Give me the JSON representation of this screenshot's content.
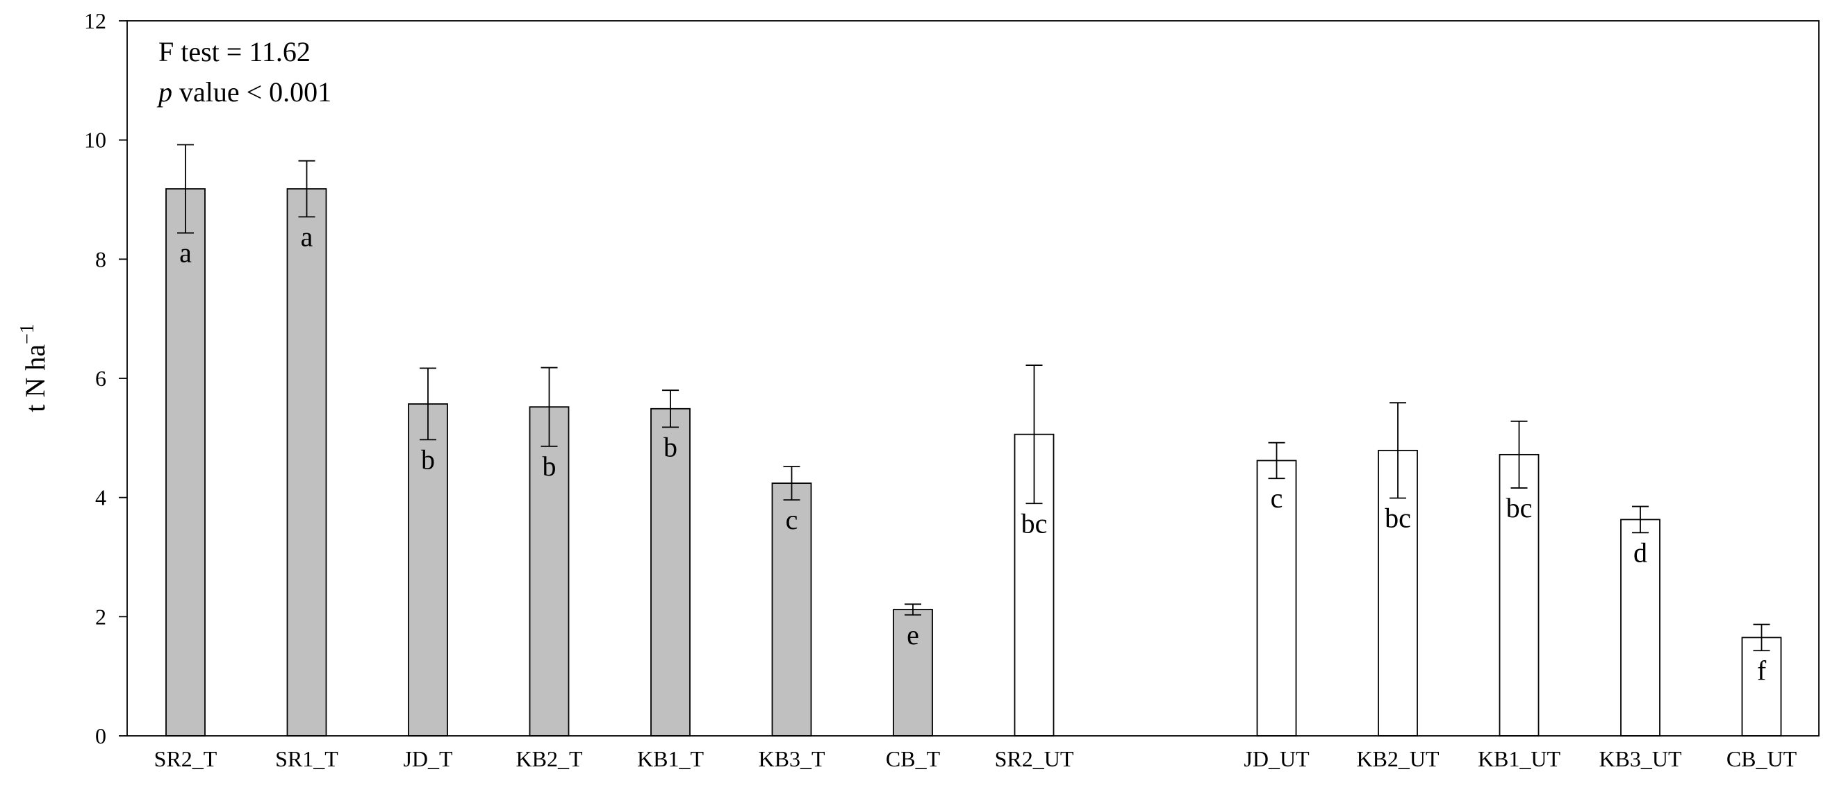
{
  "chart_data": {
    "type": "bar",
    "title": "",
    "xlabel": "",
    "ylabel": "t N ha",
    "ylabel_superscript": "−1",
    "ylim": [
      0,
      12
    ],
    "yticks": [
      0,
      2,
      4,
      6,
      8,
      10,
      12
    ],
    "grid": false,
    "annotation": {
      "f_test": "F test = 11.62",
      "p_symbol": "p",
      "p_rest": " value < 0.001"
    },
    "groups": {
      "treated_color": "#c0c0c0",
      "untreated_color": "#ffffff"
    },
    "bars": [
      {
        "category": "SR2_T",
        "value": 9.18,
        "err": 0.74,
        "letter": "a",
        "treated": true,
        "slot": 0
      },
      {
        "category": "SR1_T",
        "value": 9.18,
        "err": 0.47,
        "letter": "a",
        "treated": true,
        "slot": 1
      },
      {
        "category": "JD_T",
        "value": 5.57,
        "err": 0.6,
        "letter": "b",
        "treated": true,
        "slot": 2
      },
      {
        "category": "KB2_T",
        "value": 5.52,
        "err": 0.66,
        "letter": "b",
        "treated": true,
        "slot": 3
      },
      {
        "category": "KB1_T",
        "value": 5.49,
        "err": 0.31,
        "letter": "b",
        "treated": true,
        "slot": 4
      },
      {
        "category": "KB3_T",
        "value": 4.24,
        "err": 0.28,
        "letter": "c",
        "treated": true,
        "slot": 5
      },
      {
        "category": "CB_T",
        "value": 2.12,
        "err": 0.09,
        "letter": "e",
        "treated": true,
        "slot": 6
      },
      {
        "category": "SR2_UT",
        "value": 5.06,
        "err": 1.16,
        "letter": "bc",
        "treated": false,
        "slot": 7
      },
      {
        "category": "JD_UT",
        "value": 4.62,
        "err": 0.3,
        "letter": "c",
        "treated": false,
        "slot": 9
      },
      {
        "category": "KB2_UT",
        "value": 4.79,
        "err": 0.8,
        "letter": "bc",
        "treated": false,
        "slot": 10
      },
      {
        "category": "KB1_UT",
        "value": 4.72,
        "err": 0.56,
        "letter": "bc",
        "treated": false,
        "slot": 11
      },
      {
        "category": "KB3_UT",
        "value": 3.63,
        "err": 0.22,
        "letter": "d",
        "treated": false,
        "slot": 12
      },
      {
        "category": "CB_UT",
        "value": 1.65,
        "err": 0.22,
        "letter": "f",
        "treated": false,
        "slot": 13
      }
    ]
  }
}
